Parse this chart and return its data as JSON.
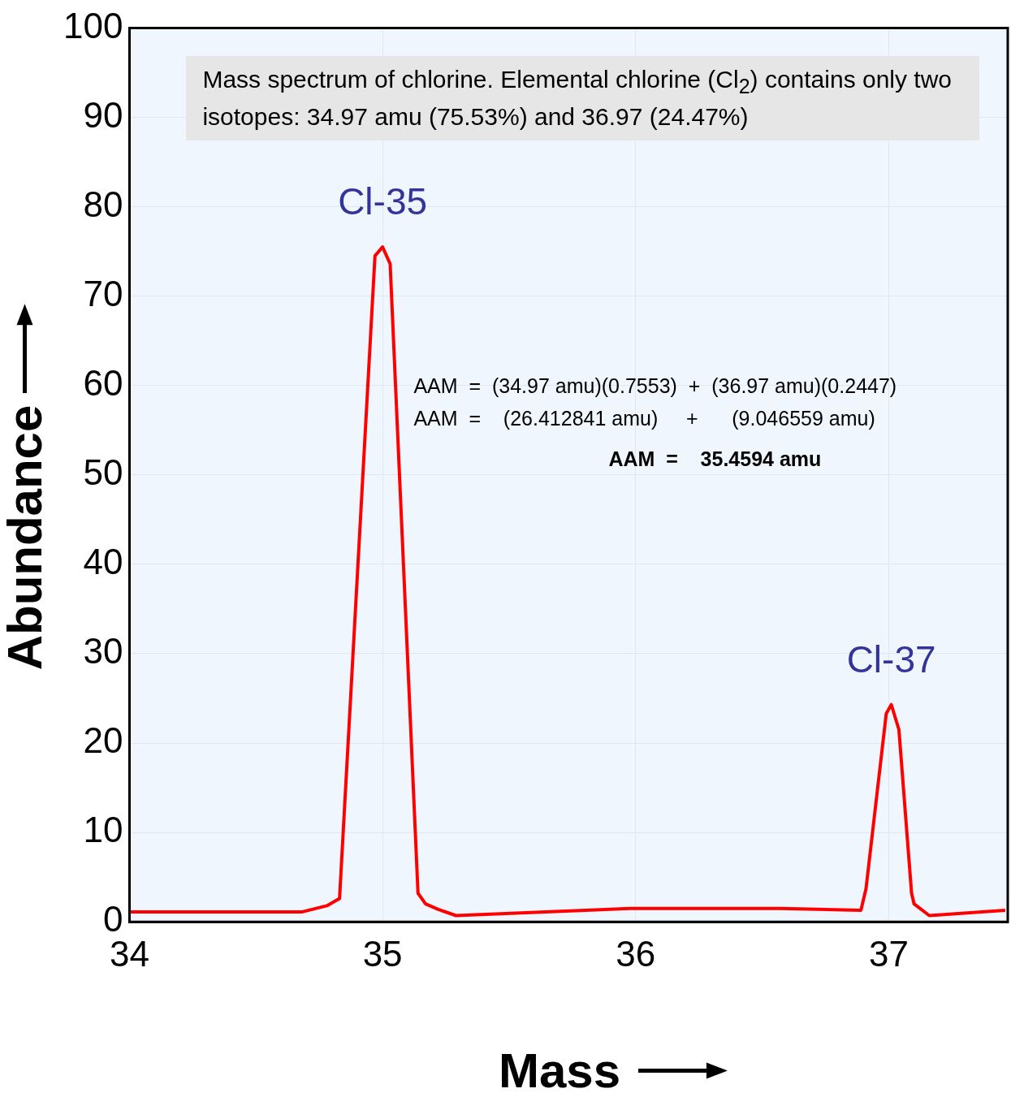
{
  "chart_data": {
    "type": "line",
    "xlabel": "Mass",
    "ylabel": "Abundance",
    "xlim": [
      34,
      37.47
    ],
    "xticks": [
      34,
      35,
      36,
      37
    ],
    "ylim": [
      0,
      100
    ],
    "yticks": [
      0,
      10,
      20,
      30,
      40,
      50,
      60,
      70,
      80,
      90,
      100
    ],
    "grid": true,
    "marker": "none",
    "line_style": "solid",
    "series": [
      {
        "color": "#ff0000",
        "x": [
          34.0,
          34.68,
          34.78,
          34.83,
          34.97,
          35.0,
          35.03,
          35.14,
          35.17,
          35.22,
          35.29,
          35.98,
          36.57,
          36.89,
          36.91,
          36.99,
          37.01,
          37.04,
          37.09,
          37.1,
          37.16,
          37.46
        ],
        "values": [
          1.1,
          1.1,
          1.8,
          2.6,
          74.5,
          75.5,
          73.6,
          3.2,
          2.0,
          1.4,
          0.7,
          1.5,
          1.5,
          1.3,
          3.7,
          23.3,
          24.3,
          21.5,
          3.2,
          2.0,
          0.7,
          1.3
        ]
      }
    ],
    "annotations": [
      "Mass spectrum of chlorine.  Elemental chlorine (Cl$_{2}$) contains only two isotopes:  34.97 amu (75.53%) and 36.97 (24.47%)",
      {
        "text": "Cl-35",
        "x": 35.0,
        "y": 75.5
      },
      {
        "text": "Cl-37",
        "x": 37.01,
        "y": 24.3
      },
      "AAM  =  (34.97 amu)(0.7553)  +  (36.97 amu)(0.2447)",
      "AAM  =    (26.412841 amu)     +      (9.046559 amu)",
      "AAM  =    35.4594 amu"
    ]
  }
}
